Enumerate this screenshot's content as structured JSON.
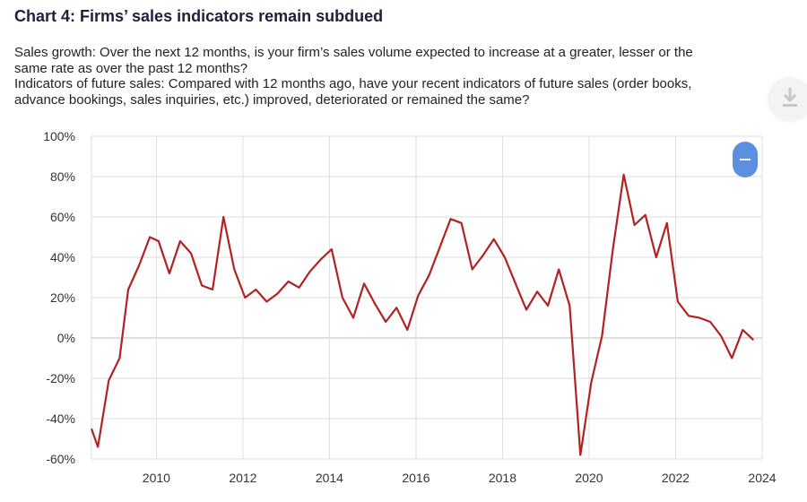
{
  "header": {
    "title": "Chart 4: Firms’ sales indicators remain subdued",
    "line1": "Sales growth: Over the next 12 months, is your firm’s sales volume expected to increase at a greater, lesser or the",
    "line2": "same rate as over the past 12 months?",
    "line3": "Indicators of future sales: Compared with 12 months ago, have your recent indicators of future sales (order books,",
    "line4": "advance bookings, sales inquiries, etc.) improved, deteriorated or remained the same?"
  },
  "controls": {
    "download_icon": "download-icon",
    "toggle_icon": "collapse-toggle"
  },
  "chart_data": {
    "type": "line",
    "title": "",
    "xlabel": "",
    "ylabel": "",
    "xlim": [
      2008.5,
      2024
    ],
    "ylim": [
      -60,
      100
    ],
    "x_ticks": [
      2010,
      2012,
      2014,
      2016,
      2018,
      2020,
      2022,
      2024
    ],
    "x_tick_labels": [
      "2010",
      "2012",
      "2014",
      "2016",
      "2018",
      "2020",
      "2022",
      "2024"
    ],
    "y_ticks": [
      -60,
      -40,
      -20,
      0,
      20,
      40,
      60,
      80,
      100
    ],
    "y_tick_labels": [
      "-60%",
      "-40%",
      "-20%",
      "0%",
      "20%",
      "40%",
      "60%",
      "80%",
      "100%"
    ],
    "grid": true,
    "series": [
      {
        "color": "#b22222",
        "points": [
          [
            2008.5,
            -45
          ],
          [
            2008.65,
            -54
          ],
          [
            2008.9,
            -21
          ],
          [
            2009.15,
            -10
          ],
          [
            2009.35,
            24
          ],
          [
            2009.6,
            36
          ],
          [
            2009.85,
            50
          ],
          [
            2010.05,
            48
          ],
          [
            2010.3,
            32
          ],
          [
            2010.55,
            48
          ],
          [
            2010.8,
            42
          ],
          [
            2011.05,
            26
          ],
          [
            2011.3,
            24
          ],
          [
            2011.55,
            60
          ],
          [
            2011.8,
            34
          ],
          [
            2012.05,
            20
          ],
          [
            2012.3,
            24
          ],
          [
            2012.55,
            18
          ],
          [
            2012.8,
            22
          ],
          [
            2013.05,
            28
          ],
          [
            2013.3,
            25
          ],
          [
            2013.55,
            33
          ],
          [
            2013.8,
            39
          ],
          [
            2014.05,
            44
          ],
          [
            2014.3,
            20
          ],
          [
            2014.55,
            10
          ],
          [
            2014.8,
            27
          ],
          [
            2015.05,
            17
          ],
          [
            2015.3,
            8
          ],
          [
            2015.55,
            15
          ],
          [
            2015.8,
            4
          ],
          [
            2016.05,
            21
          ],
          [
            2016.3,
            31
          ],
          [
            2016.55,
            45
          ],
          [
            2016.8,
            59
          ],
          [
            2017.05,
            57
          ],
          [
            2017.3,
            34
          ],
          [
            2017.55,
            41
          ],
          [
            2017.8,
            49
          ],
          [
            2018.05,
            40
          ],
          [
            2018.3,
            27
          ],
          [
            2018.55,
            14
          ],
          [
            2018.8,
            23
          ],
          [
            2019.05,
            16
          ],
          [
            2019.3,
            34
          ],
          [
            2019.55,
            16
          ],
          [
            2019.8,
            -58
          ],
          [
            2020.05,
            -22
          ],
          [
            2020.3,
            1
          ],
          [
            2020.55,
            44
          ],
          [
            2020.8,
            81
          ],
          [
            2021.05,
            56
          ],
          [
            2021.3,
            61
          ],
          [
            2021.55,
            40
          ],
          [
            2021.8,
            57
          ],
          [
            2022.05,
            18
          ],
          [
            2022.3,
            11
          ],
          [
            2022.55,
            10
          ],
          [
            2022.8,
            8
          ],
          [
            2023.05,
            1
          ],
          [
            2023.3,
            -10
          ],
          [
            2023.55,
            4
          ],
          [
            2023.8,
            -1
          ]
        ]
      }
    ]
  }
}
